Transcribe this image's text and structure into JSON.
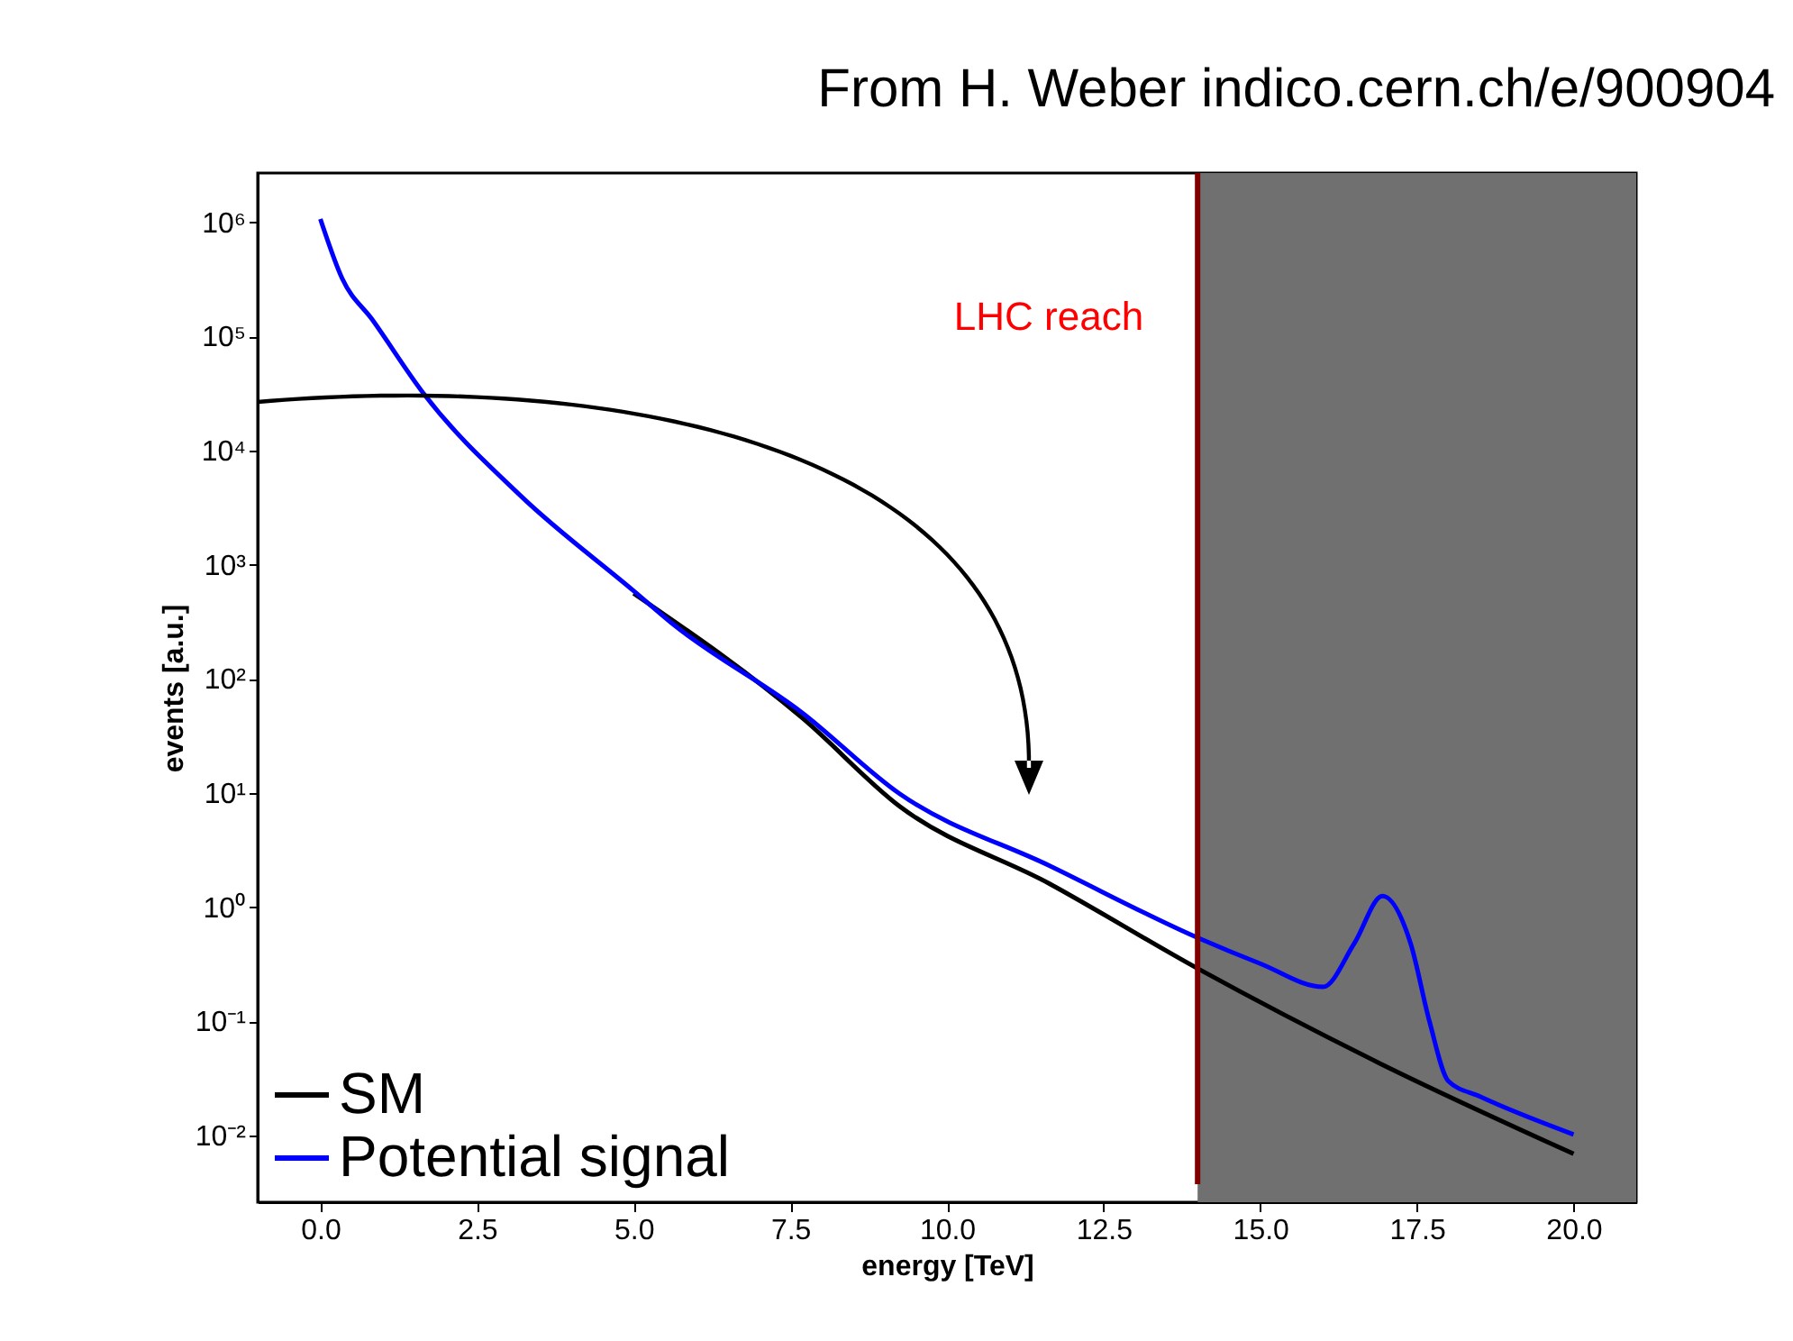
{
  "chart_data": {
    "type": "line",
    "xlabel": "energy [TeV]",
    "ylabel": "events [a.u.]",
    "annotations": [
      "From H. Weber indico.cern.ch/e/900904"
    ],
    "series": [
      {
        "name": "SM",
        "color": "#000000",
        "x": [
          5,
          7.7,
          9.25,
          11.64,
          14,
          16.9,
          20
        ],
        "values": [
          560,
          45,
          7.6,
          1.6,
          0.29,
          0.043,
          0.0069
        ]
      },
      {
        "name": "Potential signal",
        "color": "#0000ff",
        "x": [
          0,
          0.35,
          0.83,
          1.64,
          3.2,
          5,
          5.6,
          7.7,
          9.25,
          11.64,
          14,
          15,
          16,
          16.5,
          16.95,
          17.4,
          17.7,
          18,
          18.5,
          20
        ],
        "values": [
          1070000,
          320000,
          140000,
          32000,
          4000,
          590,
          310,
          50,
          9.8,
          2.3,
          0.54,
          0.32,
          0.2,
          0.48,
          1.25,
          0.48,
          0.1,
          0.03,
          0.022,
          0.0102
        ]
      }
    ],
    "xlim": [
      -1,
      21
    ],
    "xticks": [
      {
        "value": 0,
        "label": "0.0"
      },
      {
        "value": 2.5,
        "label": "2.5"
      },
      {
        "value": 5,
        "label": "5.0"
      },
      {
        "value": 7.5,
        "label": "7.5"
      },
      {
        "value": 10,
        "label": "10.0"
      },
      {
        "value": 12.5,
        "label": "12.5"
      },
      {
        "value": 15,
        "label": "15.0"
      },
      {
        "value": 17.5,
        "label": "17.5"
      },
      {
        "value": 20,
        "label": "20.0"
      }
    ],
    "ylim": [
      0.0026,
      2700000
    ],
    "yticks": [
      {
        "value": 0.01,
        "label": "10⁻²"
      },
      {
        "value": 0.1,
        "label": "10⁻¹"
      },
      {
        "value": 1,
        "label": "10⁰"
      },
      {
        "value": 10,
        "label": "10¹"
      },
      {
        "value": 100,
        "label": "10²"
      },
      {
        "value": 1000,
        "label": "10³"
      },
      {
        "value": 10000,
        "label": "10⁴"
      },
      {
        "value": 100000,
        "label": "10⁵"
      },
      {
        "value": 1000000,
        "label": "10⁶"
      }
    ],
    "log": "y",
    "grid": false,
    "legend": "bottom left",
    "line_style": "solid",
    "ref_lines": [
      {
        "axis": "x",
        "value": 14,
        "label": "LHC reach",
        "color": "#800000"
      }
    ],
    "bands": [
      {
        "axis": "x",
        "from": 14,
        "to": 21,
        "color": "#707070"
      }
    ]
  }
}
